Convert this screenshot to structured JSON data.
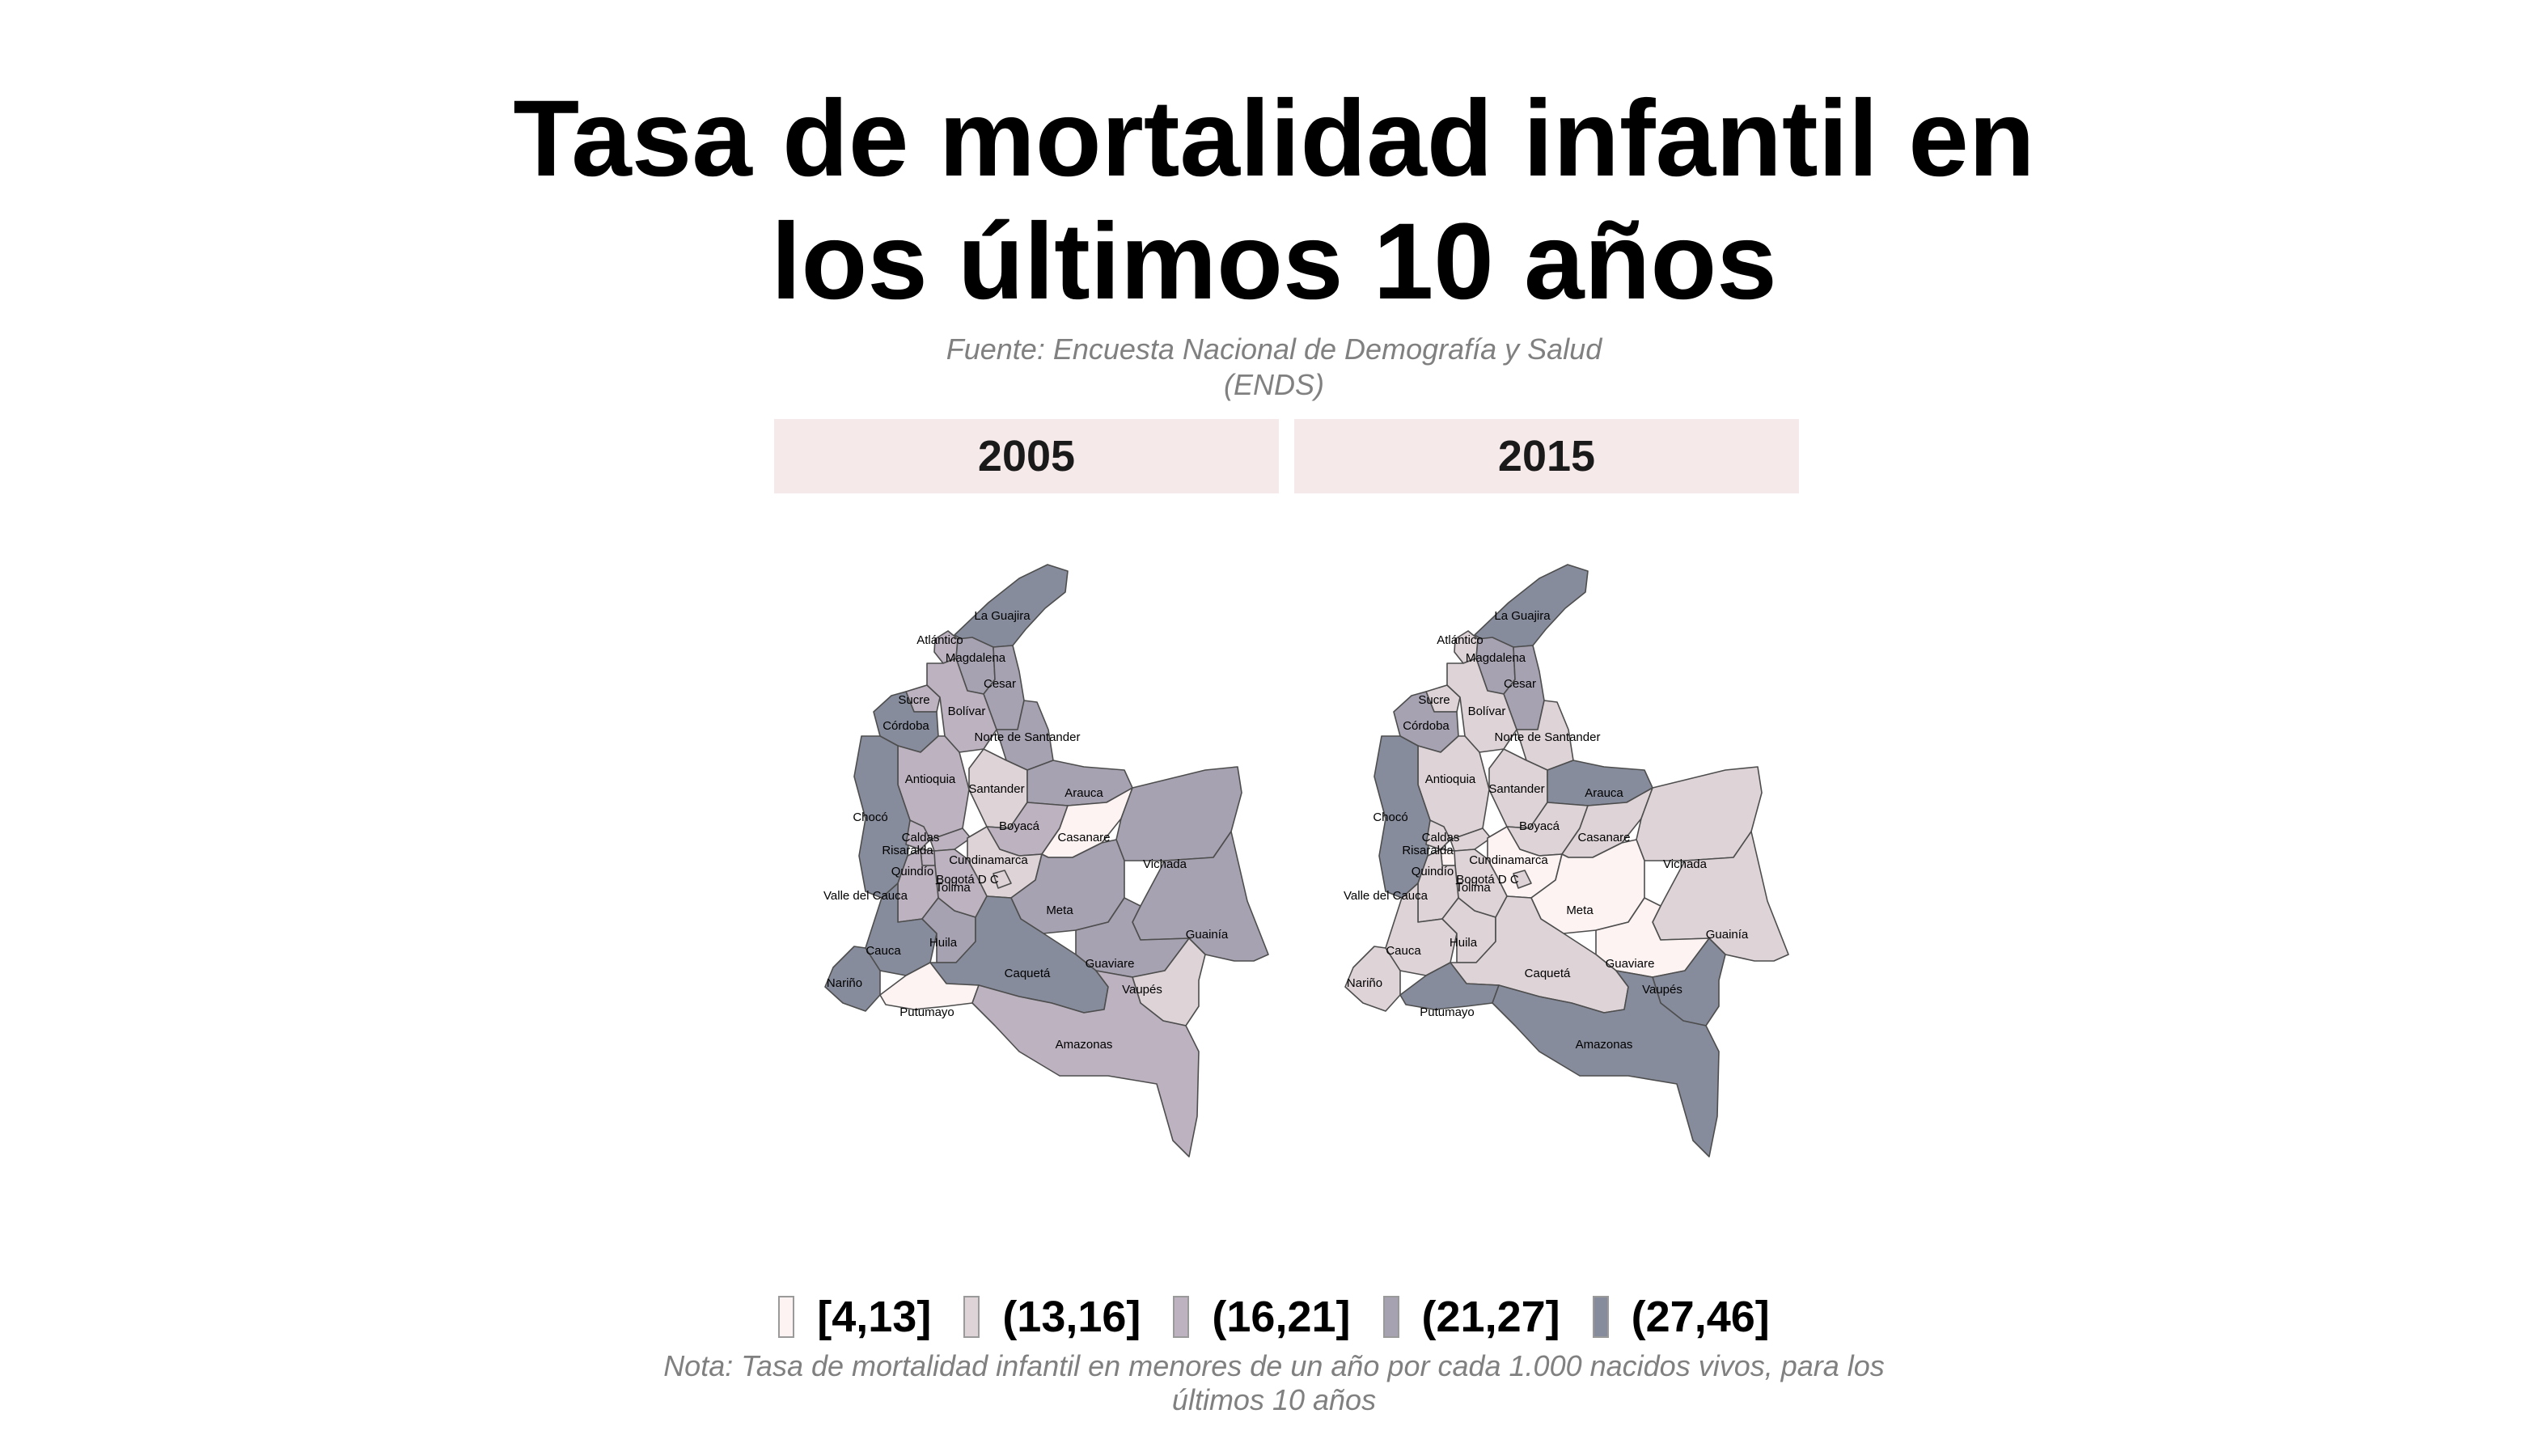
{
  "title": {
    "line1": "Tasa de mortalidad infantil en",
    "line2": "los últimos 10 años"
  },
  "subtitle": {
    "line1": "Fuente: Encuesta Nacional de Demografía y Salud",
    "line2": "(ENDS)"
  },
  "panels": [
    "2005",
    "2015"
  ],
  "legend": [
    {
      "label": "[4,13]",
      "color": "#fdf3f3"
    },
    {
      "label": "(13,16]",
      "color": "#ded4d8"
    },
    {
      "label": "(16,21]",
      "color": "#bdb3c0"
    },
    {
      "label": "(21,27]",
      "color": "#a7a2b1"
    },
    {
      "label": "(27,46]",
      "color": "#868c9c"
    }
  ],
  "note": {
    "line1": "Nota: Tasa de mortalidad infantil en menores de un año por cada 1.000 nacidos vivos, para los",
    "line2": "últimos 10 años"
  },
  "map_data": {
    "type": "choropleth",
    "region": "Colombia",
    "departments": [
      {
        "name": "La Guajira",
        "class_2005": "(27,46]",
        "class_2015": "(27,46]"
      },
      {
        "name": "Atlántico",
        "class_2005": "(16,21]",
        "class_2015": "(13,16]"
      },
      {
        "name": "Magdalena",
        "class_2005": "(21,27]",
        "class_2015": "(21,27]"
      },
      {
        "name": "Cesar",
        "class_2005": "(21,27]",
        "class_2015": "(21,27]"
      },
      {
        "name": "Sucre",
        "class_2005": "(16,21]",
        "class_2015": "(13,16]"
      },
      {
        "name": "Bolívar",
        "class_2005": "(16,21]",
        "class_2015": "(13,16]"
      },
      {
        "name": "Córdoba",
        "class_2005": "(27,46]",
        "class_2015": "(21,27]"
      },
      {
        "name": "Norte de Santander",
        "class_2005": "(21,27]",
        "class_2015": "(13,16]"
      },
      {
        "name": "Antioquia",
        "class_2005": "(16,21]",
        "class_2015": "(13,16]"
      },
      {
        "name": "Santander",
        "class_2005": "(13,16]",
        "class_2015": "(13,16]"
      },
      {
        "name": "Arauca",
        "class_2005": "(21,27]",
        "class_2015": "(27,46]"
      },
      {
        "name": "Chocó",
        "class_2005": "(27,46]",
        "class_2015": "(27,46]"
      },
      {
        "name": "Boyacá",
        "class_2005": "(16,21]",
        "class_2015": "(13,16]"
      },
      {
        "name": "Casanare",
        "class_2005": "[4,13]",
        "class_2015": "(13,16]"
      },
      {
        "name": "Risaralda",
        "class_2005": "(16,21]",
        "class_2015": "(13,16]"
      },
      {
        "name": "Caldas",
        "class_2005": "(16,21]",
        "class_2015": "(13,16]"
      },
      {
        "name": "Cundinamarca",
        "class_2005": "(13,16]",
        "class_2015": "[4,13]"
      },
      {
        "name": "Quindío",
        "class_2005": "(16,21]",
        "class_2015": "[4,13]"
      },
      {
        "name": "Bogotá D C",
        "class_2005": "(13,16]",
        "class_2015": "(13,16]"
      },
      {
        "name": "Tolima",
        "class_2005": "(16,21]",
        "class_2015": "(13,16]"
      },
      {
        "name": "Valle del Cauca",
        "class_2005": "(16,21]",
        "class_2015": "(13,16]"
      },
      {
        "name": "Vichada",
        "class_2005": "(21,27]",
        "class_2015": "(13,16]"
      },
      {
        "name": "Meta",
        "class_2005": "(21,27]",
        "class_2015": "[4,13]"
      },
      {
        "name": "Cauca",
        "class_2005": "(27,46]",
        "class_2015": "(13,16]"
      },
      {
        "name": "Huila",
        "class_2005": "(21,27]",
        "class_2015": "(13,16]"
      },
      {
        "name": "Guainía",
        "class_2005": "(21,27]",
        "class_2015": "(13,16]"
      },
      {
        "name": "Nariño",
        "class_2005": "(27,46]",
        "class_2015": "(13,16]"
      },
      {
        "name": "Guaviare",
        "class_2005": "(21,27]",
        "class_2015": "[4,13]"
      },
      {
        "name": "Caquetá",
        "class_2005": "(27,46]",
        "class_2015": "(13,16]"
      },
      {
        "name": "Putumayo",
        "class_2005": "[4,13]",
        "class_2015": "(27,46]"
      },
      {
        "name": "Vaupés",
        "class_2005": "(13,16]",
        "class_2015": "(27,46]"
      },
      {
        "name": "Amazonas",
        "class_2005": "(16,21]",
        "class_2015": "(27,46]"
      }
    ]
  }
}
